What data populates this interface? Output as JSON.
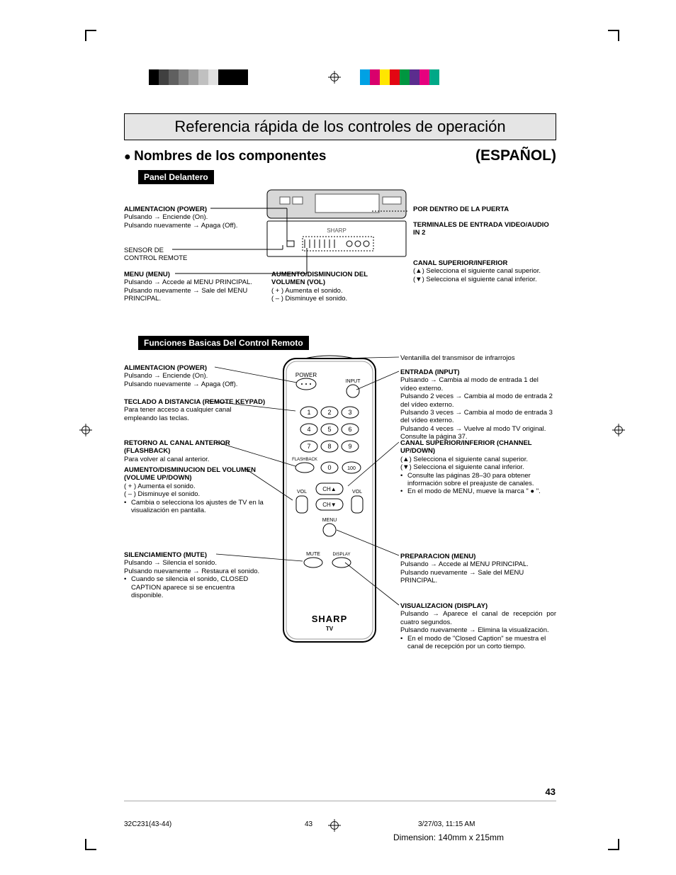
{
  "color_bar_left": [
    "#000000",
    "#404040",
    "#606060",
    "#808080",
    "#a0a0a0",
    "#c0c0c0",
    "#e0e0e0",
    "#000000",
    "#000000",
    "#000000"
  ],
  "color_bar_right": [
    "#00a1e4",
    "#d9006c",
    "#ffe600",
    "#e30613",
    "#009640",
    "#5b2d8e",
    "#e6007e",
    "#00a887"
  ],
  "title": "Referencia rápida de los controles de operación",
  "subhead_left": "Nombres de los componentes",
  "subhead_right": "(ESPAÑOL)",
  "tab_panel": "Panel Delantero",
  "tab_remote": "Funciones Basicas Del Control Remoto",
  "panel": {
    "power_hd": "ALIMENTACION (POWER)",
    "power_l1": "Pulsando → Enciende (On).",
    "power_l2": "Pulsando nuevamente → Apaga (Off).",
    "sensor_hd": "SENSOR DE",
    "sensor_l1": "CONTROL REMOTE",
    "menu_hd": "MENU (MENU)",
    "menu_l1": "Pulsando → Accede al MENU PRINCIPAL.",
    "menu_l2": "Pulsando nuevamente → Sale del MENU PRINCIPAL.",
    "vol_hd": "AUMENTO/DISMINUCION DEL VOLUMEN (VOL)",
    "vol_l1": "( + ) Aumenta el sonido.",
    "vol_l2": "( – ) Disminuye el sonido.",
    "door_hd": "POR DENTRO DE LA PUERTA",
    "term_hd": "TERMINALES DE ENTRADA VIDEO/AUDIO IN 2",
    "ch_hd": "CANAL SUPERIOR/INFERIOR",
    "ch_l1": "(▲) Selecciona el siguiente canal superior.",
    "ch_l2": "(▼) Selecciona el siguiente canal inferior."
  },
  "remote": {
    "brand": "SHARP",
    "brand_sub": "TV",
    "btn_power": "POWER",
    "btn_input": "INPUT",
    "btn_flashback": "FLASHBACK",
    "btn_vol": "VOL",
    "btn_chup": "CH▲",
    "btn_chdn": "CH▼",
    "btn_menu": "MENU",
    "btn_mute": "MUTE",
    "btn_display": "DISPLAY",
    "left": {
      "power_hd": "ALIMENTACION (POWER)",
      "power_l1": "Pulsando → Enciende (On).",
      "power_l2": "Pulsando nuevamente → Apaga (Off).",
      "keypad_hd": "TECLADO A DISTANCIA (REMOTE KEYPAD)",
      "keypad_l1": "Para tener acceso a cualquier canal empleando las teclas.",
      "flash_hd": "RETORNO AL CANAL ANTERIOR (FLASHBACK)",
      "flash_l1": "Para volver al canal anterior.",
      "vol_hd": "AUMENTO/DISMINUCION DEL VOLUMEN (VOLUME UP/DOWN)",
      "vol_l1": "( + ) Aumenta el sonido.",
      "vol_l2": "( – ) Disminuye el sonido.",
      "vol_l3": "Cambia o selecciona los ajustes de TV en la visualización en pantalla.",
      "mute_hd": "SILENCIAMIENTO (MUTE)",
      "mute_l1": "Pulsando → Silencia el sonido.",
      "mute_l2": "Pulsando nuevamente → Restaura el sonido.",
      "mute_l3": "Cuando se silencia el sonido, CLOSED CAPTION aparece si se encuentra disponible."
    },
    "right": {
      "ir": "Ventanilla del transmisor de infrarrojos",
      "input_hd": "ENTRADA (INPUT)",
      "input_l1": "Pulsando → Cambia al modo de entrada 1 del vídeo externo.",
      "input_l2": "Pulsando 2 veces → Cambia al modo de entrada 2 del vídeo externo.",
      "input_l3": "Pulsando 3 veces → Cambia al modo de entrada 3 del vídeo externo.",
      "input_l4": "Pulsando 4 veces → Vuelve al modo TV original. Consulte la página 37.",
      "ch_hd": "CANAL SUPERIOR/INFERIOR (CHANNEL UP/DOWN)",
      "ch_l1": "(▲)  Selecciona el siguiente canal superior.",
      "ch_l2": "(▼)  Selecciona el siguiente canal inferior.",
      "ch_l3": "Consulte las páginas 28–30 para obtener información sobre el preajuste de canales.",
      "ch_l4": "En el modo de MENU, mueve la marca \" ● \".",
      "menu_hd": "PREPARACION (MENU)",
      "menu_l1": "Pulsando → Accede al MENU PRINCIPAL.",
      "menu_l2": "Pulsando nuevamente → Sale del MENU PRINCIPAL.",
      "disp_hd": "VISUALIZACION (DISPLAY)",
      "disp_l1": "Pulsando → Aparece el canal de recepción por cuatro segundos.",
      "disp_l2": "Pulsando nuevamente → Elimina la visualización.",
      "disp_l3": "En el modo de \"Closed Caption\" se muestra el canal de recepción por un corto tiempo."
    }
  },
  "page_num": "43",
  "footer_left": "32C231(43-44)",
  "footer_mid": "43",
  "footer_right": "3/27/03, 11:15 AM",
  "dimension": "Dimension: 140mm x 215mm"
}
